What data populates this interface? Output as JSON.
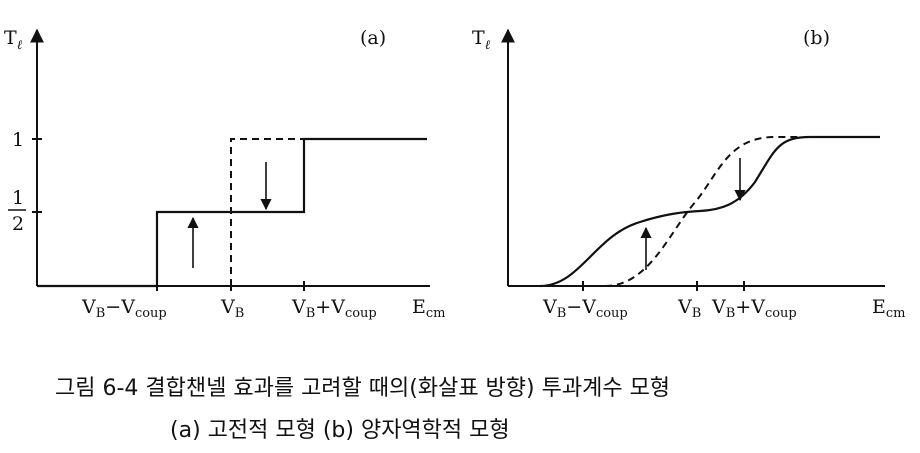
{
  "panel_a": {
    "tag": "(a)",
    "y_axis": {
      "main": "T",
      "sub": "ℓ"
    },
    "x_axis": {
      "main": "E",
      "sub": "cm"
    },
    "y_tick_1": "1",
    "y_tick_half": {
      "num": "1",
      "den": "2"
    },
    "x_ticks": {
      "left": {
        "a": "V",
        "a_sub": "B",
        "op": "−",
        "b": "V",
        "b_sub": "coup"
      },
      "mid": {
        "a": "V",
        "a_sub": "B"
      },
      "right": {
        "a": "V",
        "a_sub": "B",
        "op": "+",
        "b": "V",
        "b_sub": "coup"
      }
    }
  },
  "panel_b": {
    "tag": "(b)",
    "y_axis": {
      "main": "T",
      "sub": "ℓ"
    },
    "x_axis": {
      "main": "E",
      "sub": "cm"
    },
    "x_ticks": {
      "left": {
        "a": "V",
        "a_sub": "B",
        "op": "−",
        "b": "V",
        "b_sub": "coup"
      },
      "mid": {
        "a": "V",
        "a_sub": "B"
      },
      "right": {
        "a": "V",
        "a_sub": "B",
        "op": "+",
        "b": "V",
        "b_sub": "coup"
      }
    }
  },
  "caption": {
    "line1": "그림 6-4   결합챈넬 효과를 고려할 때의(화살표 방향) 투과계수 모형",
    "line2": "(a) 고전적 모형 (b) 양자역학적 모형"
  }
}
